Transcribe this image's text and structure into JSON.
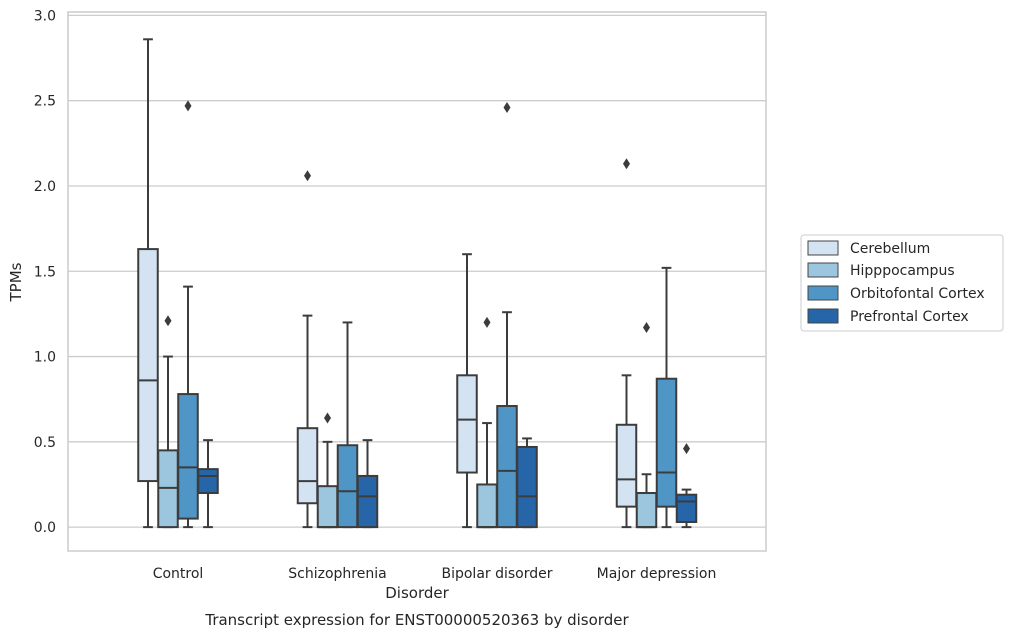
{
  "chart_data": {
    "type": "box",
    "caption": "Transcript expression for ENST00000520363 by disorder",
    "xlabel": "Disorder",
    "ylabel": "TPMs",
    "ylim": [
      -0.14,
      3.02
    ],
    "yticks": [
      0.0,
      0.5,
      1.0,
      1.5,
      2.0,
      2.5,
      3.0
    ],
    "ytick_labels": [
      "0.0",
      "0.5",
      "1.0",
      "1.5",
      "2.0",
      "2.5",
      "3.0"
    ],
    "grid": "horizontal",
    "legend_position": "right",
    "categories": [
      "Control",
      "Schizophrenia",
      "Bipolar disorder",
      "Major depression"
    ],
    "series": [
      {
        "name": "Cerebellum",
        "color": "#d4e3f2",
        "boxes": [
          {
            "whislo": 0.0,
            "q1": 0.27,
            "med": 0.86,
            "q3": 1.63,
            "whishi": 2.86,
            "fliers": []
          },
          {
            "whislo": 0.0,
            "q1": 0.14,
            "med": 0.27,
            "q3": 0.58,
            "whishi": 1.24,
            "fliers": [
              2.06
            ]
          },
          {
            "whislo": 0.0,
            "q1": 0.32,
            "med": 0.63,
            "q3": 0.89,
            "whishi": 1.6,
            "fliers": []
          },
          {
            "whislo": 0.0,
            "q1": 0.12,
            "med": 0.28,
            "q3": 0.6,
            "whishi": 0.89,
            "fliers": [
              2.13
            ]
          }
        ]
      },
      {
        "name": "Hipppocampus",
        "color": "#9bc6de",
        "boxes": [
          {
            "whislo": 0.0,
            "q1": 0.0,
            "med": 0.23,
            "q3": 0.45,
            "whishi": 1.0,
            "fliers": [
              1.21
            ]
          },
          {
            "whislo": 0.0,
            "q1": 0.0,
            "med": 0.0,
            "q3": 0.24,
            "whishi": 0.5,
            "fliers": [
              0.64
            ]
          },
          {
            "whislo": 0.0,
            "q1": 0.0,
            "med": 0.0,
            "q3": 0.25,
            "whishi": 0.61,
            "fliers": [
              1.2
            ]
          },
          {
            "whislo": 0.0,
            "q1": 0.0,
            "med": 0.0,
            "q3": 0.2,
            "whishi": 0.31,
            "fliers": [
              1.17
            ]
          }
        ]
      },
      {
        "name": "Orbitofontal Cortex",
        "color": "#4f96c7",
        "boxes": [
          {
            "whislo": 0.0,
            "q1": 0.05,
            "med": 0.35,
            "q3": 0.78,
            "whishi": 1.41,
            "fliers": [
              2.47
            ]
          },
          {
            "whislo": 0.0,
            "q1": 0.0,
            "med": 0.21,
            "q3": 0.48,
            "whishi": 1.2,
            "fliers": []
          },
          {
            "whislo": 0.0,
            "q1": 0.0,
            "med": 0.33,
            "q3": 0.71,
            "whishi": 1.26,
            "fliers": [
              2.46
            ]
          },
          {
            "whislo": 0.0,
            "q1": 0.12,
            "med": 0.32,
            "q3": 0.87,
            "whishi": 1.52,
            "fliers": []
          }
        ]
      },
      {
        "name": "Prefrontal Cortex",
        "color": "#2565a8",
        "boxes": [
          {
            "whislo": 0.0,
            "q1": 0.2,
            "med": 0.3,
            "q3": 0.34,
            "whishi": 0.51,
            "fliers": []
          },
          {
            "whislo": 0.0,
            "q1": 0.0,
            "med": 0.18,
            "q3": 0.3,
            "whishi": 0.51,
            "fliers": []
          },
          {
            "whislo": 0.0,
            "q1": 0.0,
            "med": 0.18,
            "q3": 0.47,
            "whishi": 0.52,
            "fliers": []
          },
          {
            "whislo": 0.0,
            "q1": 0.03,
            "med": 0.15,
            "q3": 0.19,
            "whishi": 0.22,
            "fliers": [
              0.46
            ]
          }
        ]
      }
    ]
  }
}
